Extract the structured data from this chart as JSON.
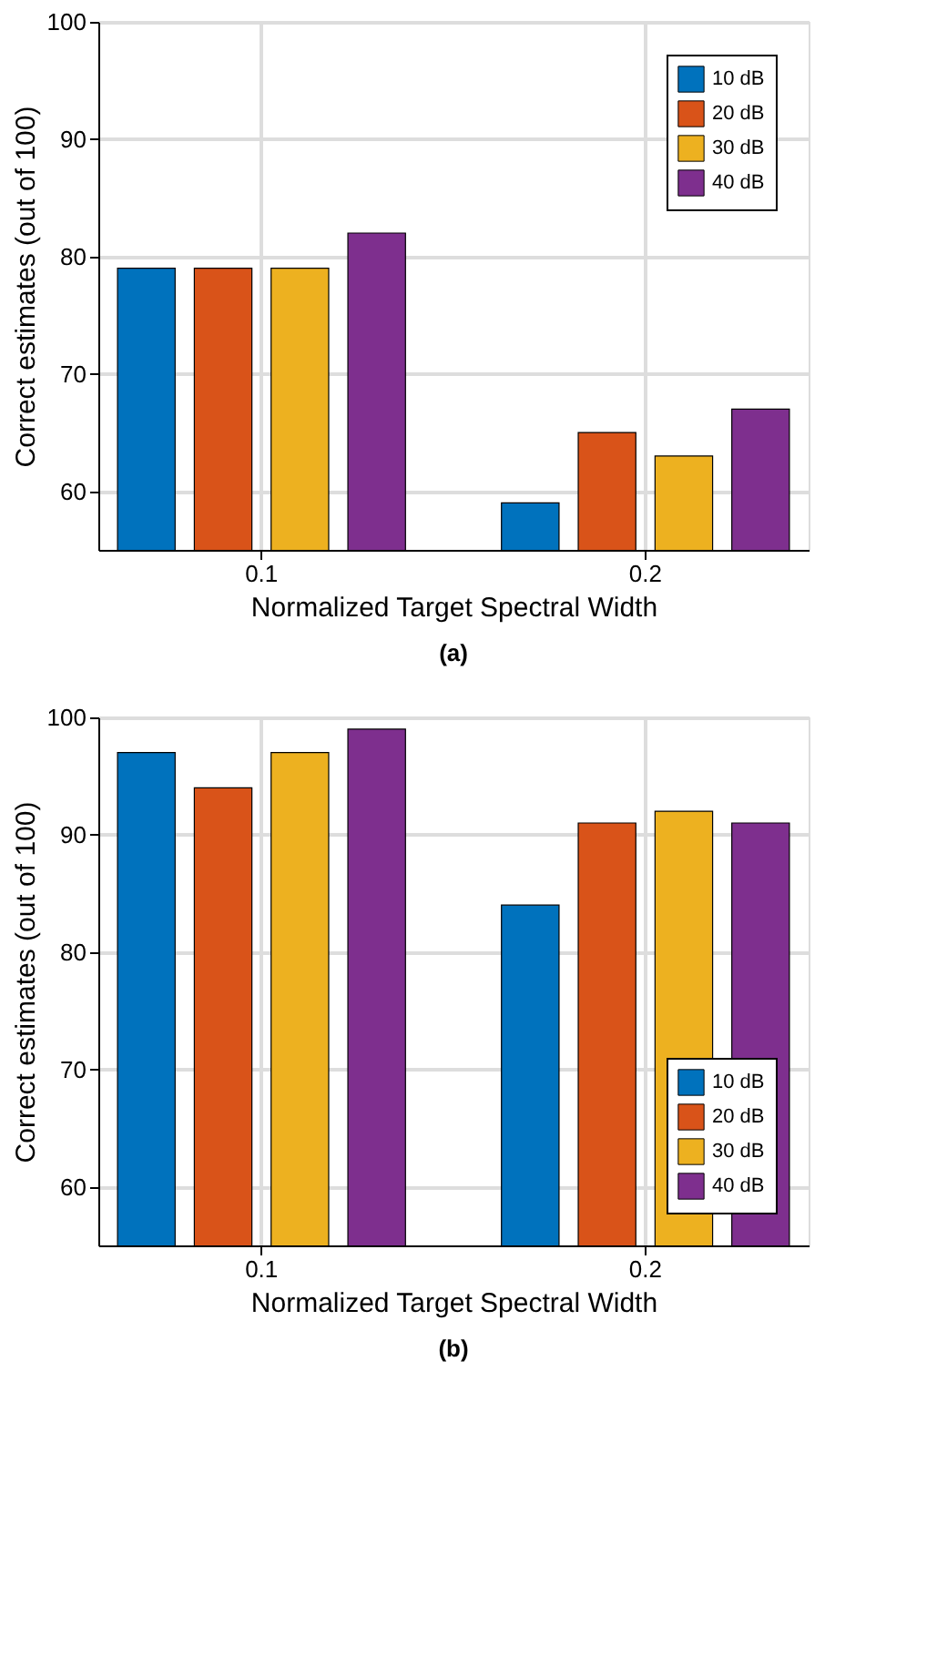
{
  "chart_data": [
    {
      "type": "bar",
      "xlabel": "Normalized Target Spectral Width",
      "ylabel": "Correct estimates (out of 100)",
      "categories": [
        "0.1",
        "0.2"
      ],
      "ylim": [
        55,
        100
      ],
      "yticks": [
        60,
        70,
        80,
        90,
        100
      ],
      "grid": true,
      "legend": "top right",
      "annotations": [
        "(a)"
      ],
      "series": [
        {
          "name": "10 dB",
          "color": "#0072bd",
          "values": [
            79,
            59
          ]
        },
        {
          "name": "20 dB",
          "color": "#d95319",
          "values": [
            79,
            65
          ]
        },
        {
          "name": "30 dB",
          "color": "#edb120",
          "values": [
            79,
            63
          ]
        },
        {
          "name": "40 dB",
          "color": "#7e2f8e",
          "values": [
            82,
            67
          ]
        }
      ]
    },
    {
      "type": "bar",
      "xlabel": "Normalized Target Spectral Width",
      "ylabel": "Correct estimates (out of 100)",
      "categories": [
        "0.1",
        "0.2"
      ],
      "ylim": [
        55,
        100
      ],
      "yticks": [
        60,
        70,
        80,
        90,
        100
      ],
      "grid": true,
      "legend": "bottom right",
      "annotations": [
        "(b)"
      ],
      "series": [
        {
          "name": "10 dB",
          "color": "#0072bd",
          "values": [
            97,
            84
          ]
        },
        {
          "name": "20 dB",
          "color": "#d95319",
          "values": [
            94,
            91
          ]
        },
        {
          "name": "30 dB",
          "color": "#edb120",
          "values": [
            97,
            92
          ]
        },
        {
          "name": "40 dB",
          "color": "#7e2f8e",
          "values": [
            99,
            91
          ]
        }
      ]
    }
  ]
}
